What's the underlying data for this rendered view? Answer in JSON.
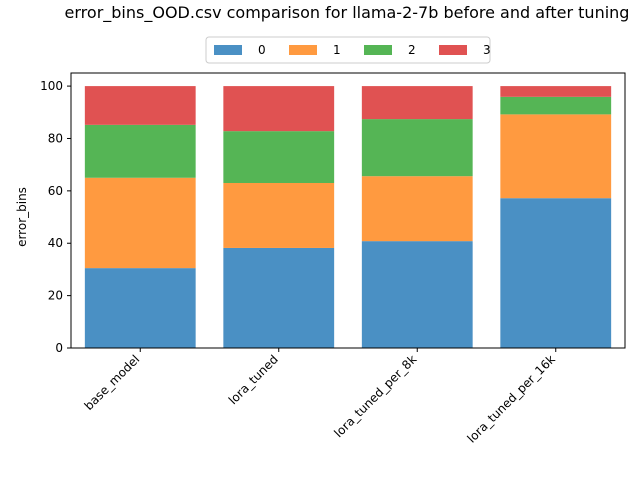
{
  "chart_data": {
    "type": "bar",
    "stacked": true,
    "title": "error_bins_OOD.csv comparison for llama-2-7b before and after tuning",
    "xlabel": "",
    "ylabel": "error_bins",
    "ylim": [
      0,
      105
    ],
    "yticks": [
      0,
      20,
      40,
      60,
      80,
      100
    ],
    "categories": [
      "base_model",
      "lora_tuned",
      "lora_tuned_per_8k",
      "lora_tuned_per_16k"
    ],
    "series": [
      {
        "name": "0",
        "color": "#4a90c4",
        "values": [
          30.5,
          38.2,
          40.8,
          57.2
        ]
      },
      {
        "name": "1",
        "color": "#ff9a40",
        "values": [
          34.5,
          24.8,
          24.8,
          32.0
        ]
      },
      {
        "name": "2",
        "color": "#55b555",
        "values": [
          20.2,
          19.8,
          21.8,
          6.7
        ]
      },
      {
        "name": "3",
        "color": "#e05252",
        "values": [
          14.8,
          17.2,
          12.6,
          4.1
        ]
      }
    ],
    "legend": "top-center",
    "grid": false
  }
}
